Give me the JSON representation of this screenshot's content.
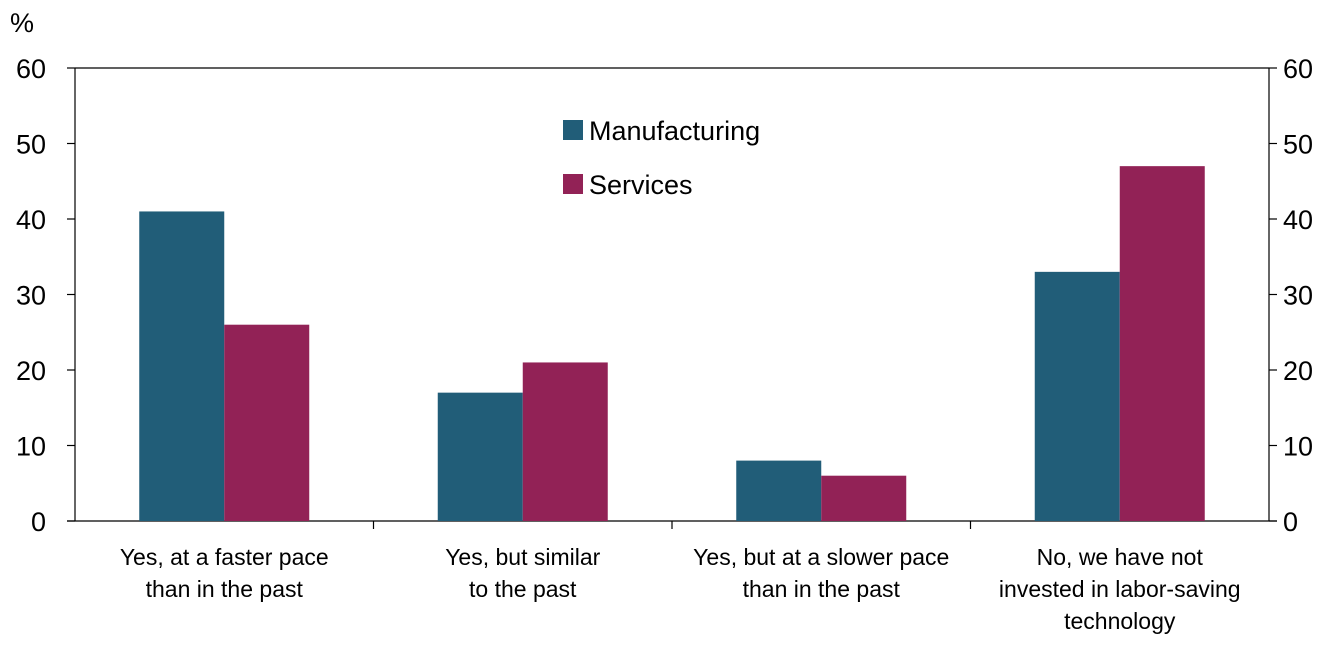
{
  "chart_data": {
    "type": "bar",
    "title": "",
    "ylabel": "%",
    "categories": [
      [
        "Yes, at a faster pace",
        "than in the past"
      ],
      [
        "Yes, but similar",
        "to the past"
      ],
      [
        "Yes, but at a slower pace",
        "than in the past"
      ],
      [
        "No, we have not",
        "invested in labor-saving",
        "technology"
      ]
    ],
    "series": [
      {
        "name": "Manufacturing",
        "color": "#215d78",
        "values": [
          41,
          17,
          8,
          33
        ]
      },
      {
        "name": "Services",
        "color": "#922256",
        "values": [
          26,
          21,
          6,
          47
        ]
      }
    ],
    "ylim": [
      0,
      60
    ],
    "yticks": [
      0,
      10,
      20,
      30,
      40,
      50,
      60
    ],
    "right_axis": true,
    "grid": false,
    "legend_position": "top-center"
  }
}
